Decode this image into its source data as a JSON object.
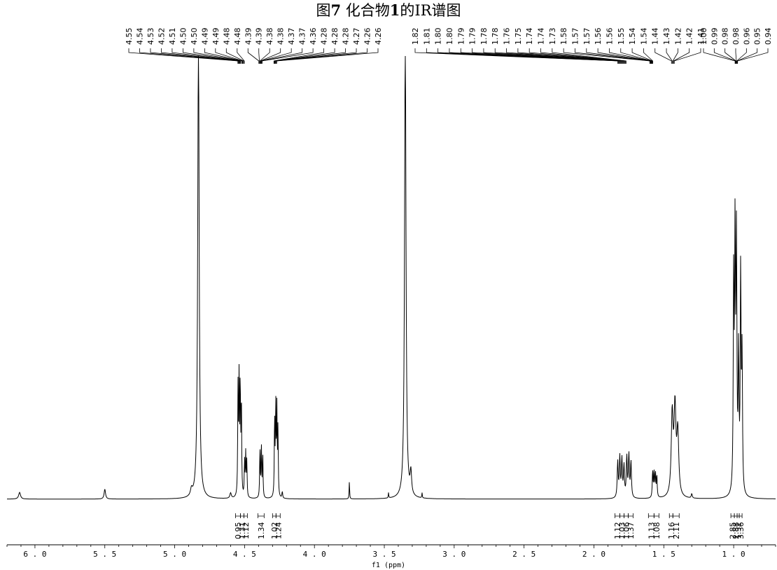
{
  "title": {
    "prefix": "图",
    "number": "7",
    "text": " 化合物",
    "compound": "1",
    "suffix": "的IR谱图"
  },
  "chart_data": {
    "type": "line",
    "xlabel": "f1 (ppm)",
    "xlim": [
      6.2,
      0.7
    ],
    "ylim": [
      0,
      1.0
    ],
    "grid": false,
    "x_ticks": [
      {
        "value": 6.0,
        "label": "6.0"
      },
      {
        "value": 5.5,
        "label": "5.5"
      },
      {
        "value": 5.0,
        "label": "5.0"
      },
      {
        "value": 4.5,
        "label": "4.5"
      },
      {
        "value": 4.0,
        "label": "4.0"
      },
      {
        "value": 3.5,
        "label": "3.5"
      },
      {
        "value": 3.0,
        "label": "3.0"
      },
      {
        "value": 2.5,
        "label": "2.5"
      },
      {
        "value": 2.0,
        "label": "2.0"
      },
      {
        "value": 1.5,
        "label": "1.5"
      },
      {
        "value": 1.0,
        "label": "1.0"
      }
    ],
    "peaks": [
      {
        "x": 6.11,
        "h": 0.015,
        "w": 0.008
      },
      {
        "x": 5.5,
        "h": 0.022,
        "w": 0.006
      },
      {
        "x": 4.88,
        "h": 0.015,
        "w": 0.008
      },
      {
        "x": 4.83,
        "h": 1.05,
        "w": 0.006
      },
      {
        "x": 4.6,
        "h": 0.012,
        "w": 0.006
      },
      {
        "x": 4.547,
        "h": 0.24,
        "w": 0.0025
      },
      {
        "x": 4.539,
        "h": 0.26,
        "w": 0.0025
      },
      {
        "x": 4.531,
        "h": 0.25,
        "w": 0.0025
      },
      {
        "x": 4.523,
        "h": 0.22,
        "w": 0.0025
      },
      {
        "x": 4.5,
        "h": 0.08,
        "w": 0.0025
      },
      {
        "x": 4.492,
        "h": 0.095,
        "w": 0.0025
      },
      {
        "x": 4.484,
        "h": 0.08,
        "w": 0.0025
      },
      {
        "x": 4.39,
        "h": 0.11,
        "w": 0.0025
      },
      {
        "x": 4.38,
        "h": 0.12,
        "w": 0.0025
      },
      {
        "x": 4.37,
        "h": 0.1,
        "w": 0.0025
      },
      {
        "x": 4.285,
        "h": 0.18,
        "w": 0.0025
      },
      {
        "x": 4.277,
        "h": 0.2,
        "w": 0.0025
      },
      {
        "x": 4.269,
        "h": 0.19,
        "w": 0.0025
      },
      {
        "x": 4.261,
        "h": 0.15,
        "w": 0.0025
      },
      {
        "x": 4.23,
        "h": 0.015,
        "w": 0.003
      },
      {
        "x": 3.75,
        "h": 0.04,
        "w": 0.002
      },
      {
        "x": 3.47,
        "h": 0.012,
        "w": 0.002
      },
      {
        "x": 3.35,
        "h": 1.05,
        "w": 0.006
      },
      {
        "x": 3.31,
        "h": 0.05,
        "w": 0.006
      },
      {
        "x": 3.23,
        "h": 0.012,
        "w": 0.002
      },
      {
        "x": 1.83,
        "h": 0.08,
        "w": 0.004
      },
      {
        "x": 1.815,
        "h": 0.09,
        "w": 0.004
      },
      {
        "x": 1.8,
        "h": 0.085,
        "w": 0.004
      },
      {
        "x": 1.785,
        "h": 0.07,
        "w": 0.004
      },
      {
        "x": 1.765,
        "h": 0.09,
        "w": 0.004
      },
      {
        "x": 1.75,
        "h": 0.095,
        "w": 0.004
      },
      {
        "x": 1.735,
        "h": 0.08,
        "w": 0.004
      },
      {
        "x": 1.58,
        "h": 0.06,
        "w": 0.003
      },
      {
        "x": 1.57,
        "h": 0.058,
        "w": 0.003
      },
      {
        "x": 1.56,
        "h": 0.055,
        "w": 0.003
      },
      {
        "x": 1.55,
        "h": 0.05,
        "w": 0.003
      },
      {
        "x": 1.44,
        "h": 0.18,
        "w": 0.008
      },
      {
        "x": 1.42,
        "h": 0.19,
        "w": 0.008
      },
      {
        "x": 1.4,
        "h": 0.14,
        "w": 0.008
      },
      {
        "x": 1.3,
        "h": 0.01,
        "w": 0.004
      },
      {
        "x": 1.0,
        "h": 0.48,
        "w": 0.0035
      },
      {
        "x": 0.99,
        "h": 0.56,
        "w": 0.0035
      },
      {
        "x": 0.98,
        "h": 0.55,
        "w": 0.0035
      },
      {
        "x": 0.965,
        "h": 0.3,
        "w": 0.0035
      },
      {
        "x": 0.95,
        "h": 0.49,
        "w": 0.0035
      },
      {
        "x": 0.94,
        "h": 0.3,
        "w": 0.0035
      }
    ],
    "peak_label_groups": [
      {
        "labels": [
          "4.55",
          "4.54",
          "4.53",
          "4.52",
          "4.51",
          "4.50",
          "4.50",
          "4.49",
          "4.49",
          "4.48",
          "4.48",
          "4.39",
          "4.39",
          "4.38",
          "4.38",
          "4.37",
          "4.37",
          "4.36",
          "4.28",
          "4.28",
          "4.28",
          "4.27",
          "4.26",
          "4.26"
        ],
        "positions": [
          4.548,
          4.544,
          4.54,
          4.536,
          4.532,
          4.528,
          4.52,
          4.516,
          4.512,
          4.506,
          4.502,
          4.398,
          4.394,
          4.39,
          4.386,
          4.382,
          4.378,
          4.374,
          4.29,
          4.286,
          4.282,
          4.278,
          4.274,
          4.27
        ]
      },
      {
        "labels": [
          "1.82",
          "1.81",
          "1.80",
          "1.80",
          "1.79",
          "1.79",
          "1.78",
          "1.78",
          "1.76",
          "1.75",
          "1.74",
          "1.74",
          "1.73",
          "1.58",
          "1.57",
          "1.57",
          "1.56",
          "1.56",
          "1.55",
          "1.54",
          "1.54",
          "1.44",
          "1.43",
          "1.42",
          "1.42",
          "1.41"
        ],
        "positions": [
          1.83,
          1.825,
          1.82,
          1.815,
          1.81,
          1.805,
          1.8,
          1.795,
          1.79,
          1.785,
          1.78,
          1.775,
          1.77,
          1.6,
          1.597,
          1.594,
          1.591,
          1.588,
          1.585,
          1.582,
          1.579,
          1.445,
          1.44,
          1.435,
          1.43,
          1.425
        ]
      },
      {
        "labels": [
          "1.00",
          "0.99",
          "0.98",
          "0.98",
          "0.96",
          "0.95",
          "0.94"
        ],
        "positions": [
          0.99,
          0.987,
          0.984,
          0.981,
          0.978,
          0.975,
          0.972
        ]
      }
    ],
    "integrations": [
      {
        "x1": 4.565,
        "x2": 4.53,
        "value": "0.95"
      },
      {
        "x1": 4.53,
        "x2": 4.505,
        "value": "1.31"
      },
      {
        "x1": 4.505,
        "x2": 4.48,
        "value": "1.12"
      },
      {
        "x1": 4.405,
        "x2": 4.36,
        "value": "1.34"
      },
      {
        "x1": 4.3,
        "x2": 4.275,
        "value": "1.02"
      },
      {
        "x1": 4.275,
        "x2": 4.245,
        "value": "1.24"
      },
      {
        "x1": 1.85,
        "x2": 1.815,
        "value": "1.12"
      },
      {
        "x1": 1.815,
        "x2": 1.785,
        "value": "1.03"
      },
      {
        "x1": 1.785,
        "x2": 1.755,
        "value": "1.06"
      },
      {
        "x1": 1.755,
        "x2": 1.72,
        "value": "1.37"
      },
      {
        "x1": 1.61,
        "x2": 1.57,
        "value": "1.13"
      },
      {
        "x1": 1.57,
        "x2": 1.535,
        "value": "1.08"
      },
      {
        "x1": 1.46,
        "x2": 1.435,
        "value": "1.16"
      },
      {
        "x1": 1.435,
        "x2": 1.39,
        "value": "2.11"
      },
      {
        "x1": 1.02,
        "x2": 0.995,
        "value": "2.85"
      },
      {
        "x1": 0.995,
        "x2": 0.975,
        "value": "2.88"
      },
      {
        "x1": 0.975,
        "x2": 0.96,
        "value": "1.31"
      },
      {
        "x1": 0.96,
        "x2": 0.94,
        "value": "3.36"
      }
    ]
  }
}
